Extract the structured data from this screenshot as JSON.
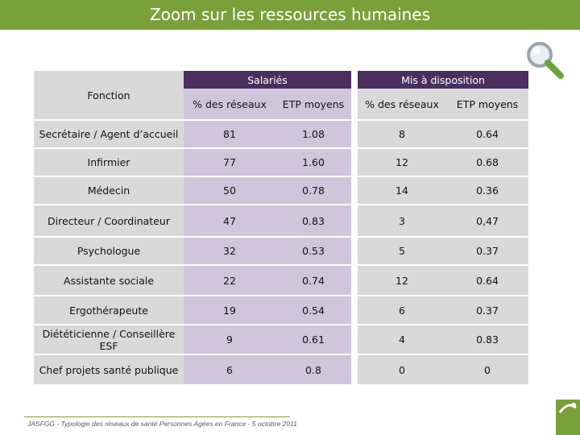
{
  "header": {
    "title": "Zoom sur les ressources humaines"
  },
  "table": {
    "fonction_label": "Fonction",
    "groups": [
      "Salariés",
      "Mis à disposition"
    ],
    "subheaders": [
      "% des réseaux",
      "ETP moyens",
      "% des réseaux",
      "ETP moyens"
    ],
    "rows": [
      {
        "fonction": "Secrétaire / Agent d’accueil",
        "sal_pct": "81",
        "sal_etp": "1.08",
        "mad_pct": "8",
        "mad_etp": "0.64"
      },
      {
        "fonction": "Infirmier",
        "sal_pct": "77",
        "sal_etp": "1.60",
        "mad_pct": "12",
        "mad_etp": "0.68"
      },
      {
        "fonction": "Médecin",
        "sal_pct": "50",
        "sal_etp": "0.78",
        "mad_pct": "14",
        "mad_etp": "0.36"
      },
      {
        "fonction": "Directeur / Coordinateur",
        "sal_pct": "47",
        "sal_etp": "0.83",
        "mad_pct": "3",
        "mad_etp": "0,47"
      },
      {
        "fonction": "Psychologue",
        "sal_pct": "32",
        "sal_etp": "0.53",
        "mad_pct": "5",
        "mad_etp": "0.37"
      },
      {
        "fonction": "Assistante sociale",
        "sal_pct": "22",
        "sal_etp": "0.74",
        "mad_pct": "12",
        "mad_etp": "0.64"
      },
      {
        "fonction": "Ergothérapeute",
        "sal_pct": "19",
        "sal_etp": "0.54",
        "mad_pct": "6",
        "mad_etp": "0.37"
      },
      {
        "fonction": "Diététicienne / Conseillère ESF",
        "sal_pct": "9",
        "sal_etp": "0.61",
        "mad_pct": "4",
        "mad_etp": "0.83"
      },
      {
        "fonction": "Chef projets santé publique",
        "sal_pct": "6",
        "sal_etp": "0.8",
        "mad_pct": "0",
        "mad_etp": "0"
      }
    ]
  },
  "footer": {
    "text": "JASFGG - Typologie des réseaux de santé Personnes Agées en France - 5 octobre 2011"
  },
  "colors": {
    "accent_green": "#7aa03b",
    "header_purple": "#4a2f5e",
    "salaries_fill": "#cfc6dc",
    "grey_fill": "#d9d9d9"
  },
  "icons": {
    "zoom": "magnifier-icon",
    "logo": "org-logo"
  }
}
